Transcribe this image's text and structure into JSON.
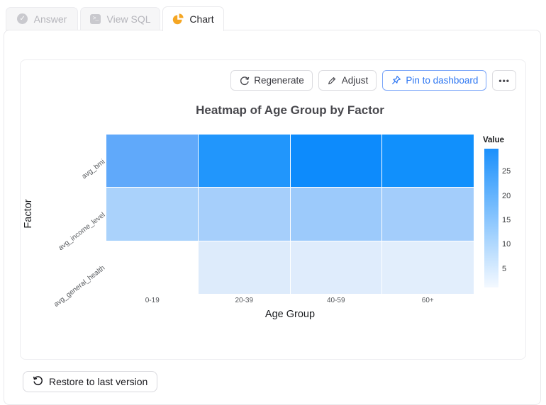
{
  "tabs": [
    {
      "label": "Answer",
      "icon": "check-circle-icon",
      "active": false
    },
    {
      "label": "View SQL",
      "icon": "terminal-icon",
      "active": false
    },
    {
      "label": "Chart",
      "icon": "pie-chart-icon",
      "active": true
    }
  ],
  "toolbar": {
    "regenerate_label": "Regenerate",
    "adjust_label": "Adjust",
    "pin_label": "Pin to dashboard",
    "more_label": "•••"
  },
  "footer": {
    "restore_label": "Restore to last version"
  },
  "icons": {
    "terminal_glyph": ">_",
    "check_glyph": "✓"
  },
  "colors": {
    "accent_blue": "#2e77f2",
    "pin_border": "#7aa5f9",
    "tab_inactive_text": "#b5b5bb",
    "pie_icon_orange": "#f5a623",
    "panel_border": "#e9e9ec"
  },
  "chart_data": {
    "type": "heatmap",
    "title": "Heatmap of Age Group by Factor",
    "xlabel": "Age Group",
    "ylabel": "Factor",
    "x_categories": [
      "0-19",
      "20-39",
      "40-59",
      "60+"
    ],
    "y_categories": [
      "avg_bmi",
      "avg_income_level",
      "avg_general_health"
    ],
    "values": [
      [
        20,
        27,
        29.5,
        29
      ],
      [
        11,
        11.5,
        13,
        12
      ],
      [
        null,
        5,
        5,
        4.5
      ]
    ],
    "cell_colors": [
      [
        "#60a9fa",
        "#2196fc",
        "#0d8bfc",
        "#1190fc"
      ],
      [
        "#aad2fb",
        "#a6cffb",
        "#9ccafb",
        "#a3cdfb"
      ],
      [
        null,
        "#ddebfb",
        "#dfecfc",
        "#e2eefc"
      ]
    ],
    "legend_position": "right",
    "grid": false,
    "colorbar": {
      "label": "Value",
      "ticks": [
        25,
        20,
        15,
        10,
        5
      ],
      "min": 1.2,
      "max": 29.7,
      "top_color": "#1b90fc",
      "bottom_color": "#f4f9ff"
    }
  }
}
